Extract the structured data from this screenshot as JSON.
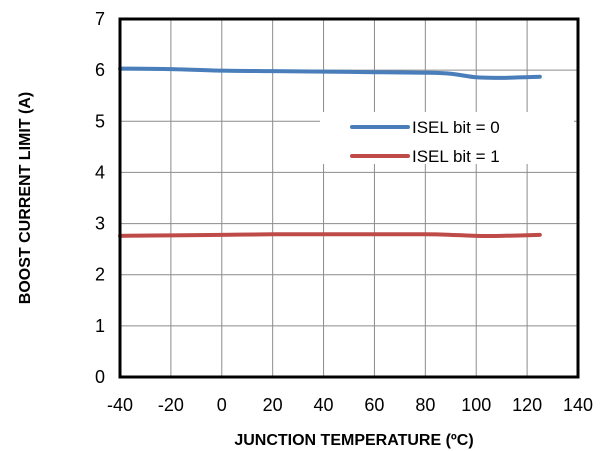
{
  "chart_data": {
    "type": "line",
    "xlabel": "JUNCTION TEMPERATURE (ºC)",
    "ylabel": "BOOST CURRENT LIMIT (A)",
    "xlim": [
      -40,
      140
    ],
    "ylim": [
      0,
      7
    ],
    "xticks": [
      "-40",
      "-20",
      "0",
      "20",
      "40",
      "60",
      "80",
      "100",
      "120",
      "140"
    ],
    "yticks": [
      "0",
      "1",
      "2",
      "3",
      "4",
      "5",
      "6",
      "7"
    ],
    "grid": true,
    "legend": "upper-right",
    "series": [
      {
        "name": "ISEL bit = 0",
        "color": "#4a7ebb",
        "x": [
          -40,
          -20,
          0,
          20,
          40,
          60,
          80,
          90,
          100,
          110,
          125
        ],
        "y": [
          6.03,
          6.02,
          5.99,
          5.98,
          5.97,
          5.96,
          5.95,
          5.93,
          5.86,
          5.85,
          5.87
        ]
      },
      {
        "name": "ISEL bit = 1",
        "color": "#be4b48",
        "x": [
          -40,
          -20,
          0,
          20,
          40,
          60,
          80,
          90,
          100,
          110,
          125
        ],
        "y": [
          2.76,
          2.77,
          2.78,
          2.79,
          2.79,
          2.79,
          2.79,
          2.78,
          2.76,
          2.76,
          2.78
        ]
      }
    ]
  }
}
